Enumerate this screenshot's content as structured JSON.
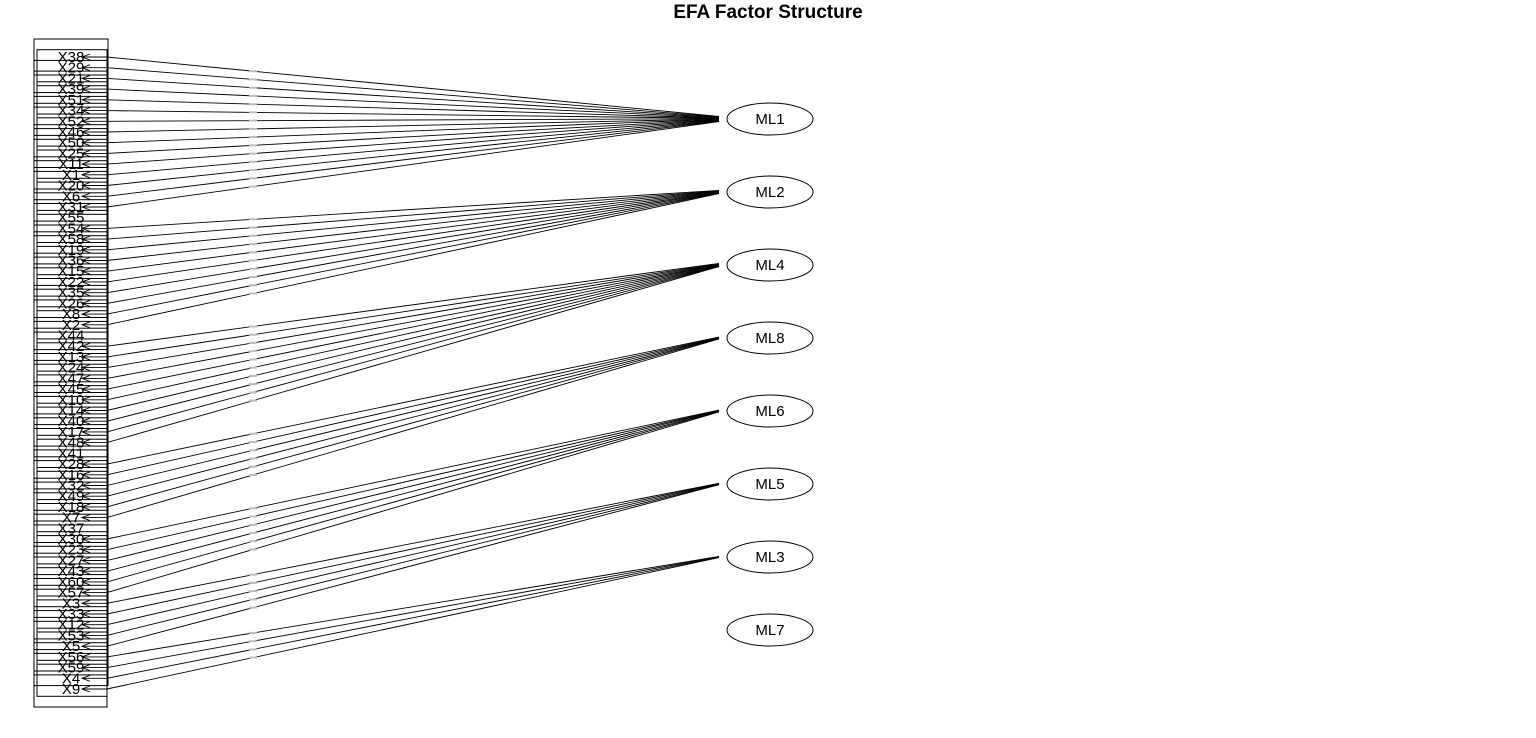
{
  "title": "EFA Factor Structure",
  "variables": [
    "X38",
    "X29",
    "X21",
    "X39",
    "X51",
    "X34",
    "X52",
    "X46",
    "X50",
    "X25",
    "X11",
    "X1",
    "X20",
    "X6",
    "X31",
    "X55",
    "X54",
    "X58",
    "X19",
    "X36",
    "X15",
    "X22",
    "X35",
    "X26",
    "X8",
    "X2",
    "X44",
    "X42",
    "X13",
    "X24",
    "X47",
    "X45",
    "X10",
    "X14",
    "X40",
    "X17",
    "X48",
    "X41",
    "X28",
    "X16",
    "X32",
    "X49",
    "X18",
    "X7",
    "X37",
    "X30",
    "X23",
    "X27",
    "X43",
    "X60",
    "X57",
    "X3",
    "X33",
    "X12",
    "X53",
    "X5",
    "X56",
    "X59",
    "X4",
    "X9"
  ],
  "factors": [
    {
      "name": "ML1",
      "items": [
        "X38",
        "X29",
        "X21",
        "X39",
        "X51",
        "X34",
        "X52",
        "X46",
        "X50",
        "X25",
        "X11",
        "X1",
        "X20",
        "X6",
        "X31"
      ]
    },
    {
      "name": "ML2",
      "items": [
        "X54",
        "X58",
        "X19",
        "X36",
        "X15",
        "X22",
        "X35",
        "X26",
        "X8",
        "X2"
      ]
    },
    {
      "name": "ML4",
      "items": [
        "X42",
        "X13",
        "X24",
        "X47",
        "X45",
        "X10",
        "X14",
        "X40",
        "X17",
        "X48"
      ]
    },
    {
      "name": "ML8",
      "items": [
        "X28",
        "X16",
        "X32",
        "X49",
        "X18",
        "X7"
      ]
    },
    {
      "name": "ML6",
      "items": [
        "X30",
        "X23",
        "X27",
        "X43",
        "X60",
        "X57"
      ]
    },
    {
      "name": "ML5",
      "items": [
        "X3",
        "X33",
        "X12",
        "X53",
        "X5"
      ]
    },
    {
      "name": "ML3",
      "items": [
        "X56",
        "X59",
        "X4",
        "X9"
      ]
    },
    {
      "name": "ML7",
      "items": []
    }
  ],
  "style": {
    "line_color": "#000000",
    "loading_label_color": "#9a9a9a"
  }
}
